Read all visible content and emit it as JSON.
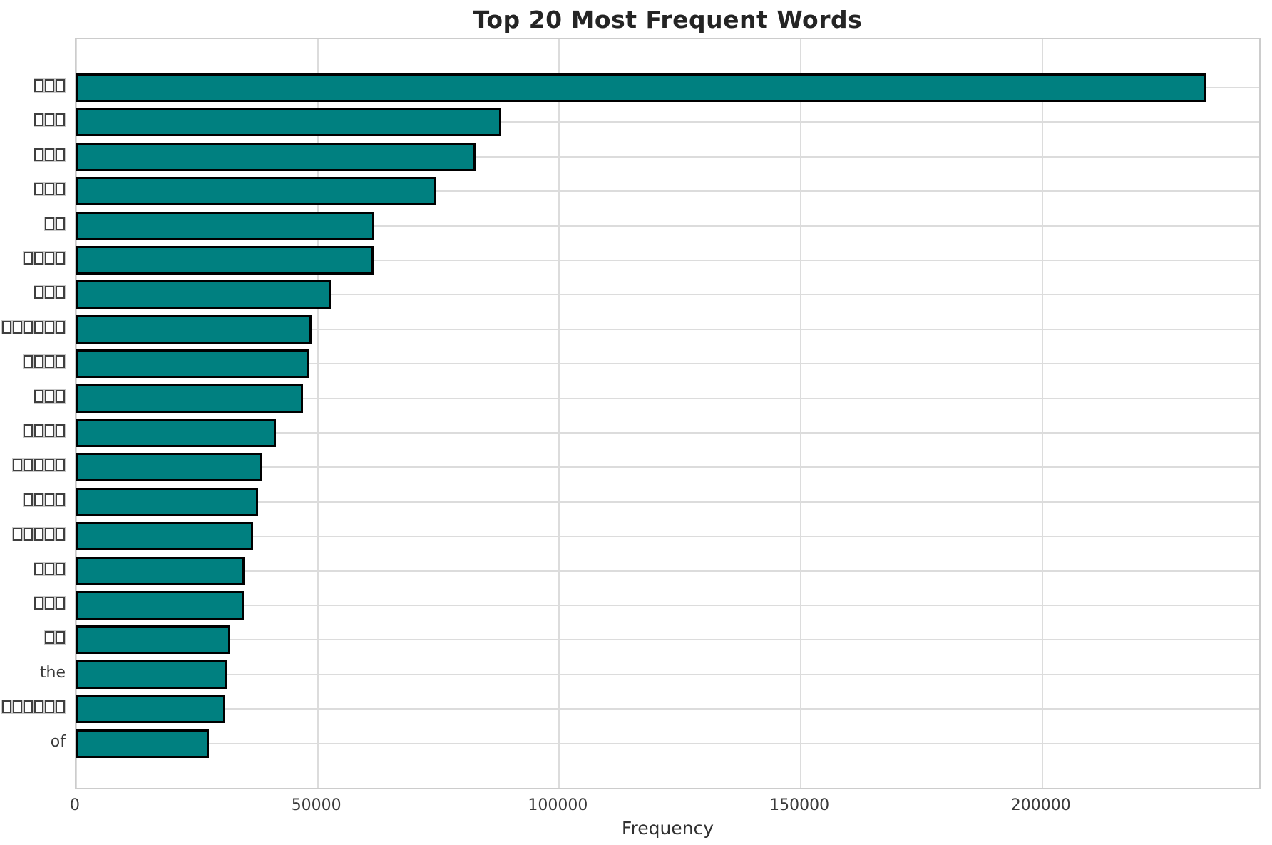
{
  "chart_data": {
    "type": "bar",
    "orientation": "horizontal",
    "title": "Top 20 Most Frequent Words",
    "xlabel": "Frequency",
    "ylabel": "",
    "categories": [
      "□□□",
      "□□□",
      "□□□",
      "□□□",
      "□□",
      "□□□□",
      "□□□",
      "□□□□□□",
      "□□□□",
      "□□□",
      "□□□□",
      "□□□□□",
      "□□□□",
      "□□□□□",
      "□□□",
      "□□□",
      "□□",
      "the",
      "□□□□□□",
      "of"
    ],
    "values": [
      233900,
      88000,
      82700,
      74500,
      61700,
      61500,
      52700,
      48700,
      48200,
      47000,
      41400,
      38600,
      37600,
      36600,
      34800,
      34700,
      31900,
      31100,
      30800,
      27400
    ],
    "xticks": [
      0,
      50000,
      100000,
      150000,
      200000
    ],
    "xtick_labels": [
      "0",
      "50000",
      "100000",
      "150000",
      "200000"
    ],
    "xlim": [
      0,
      245500
    ],
    "grid": true,
    "legend": false,
    "note": "y-axis labels other than 'the' and 'of' are rendered as missing-glyph boxes",
    "colors": {
      "bar_fill": "#008080",
      "bar_edge": "#000000",
      "gridline": "#dcdcdc",
      "spine": "#cccccc",
      "tick_text": "#3a3a3a",
      "title_text": "#242424",
      "background": "#ffffff"
    }
  }
}
